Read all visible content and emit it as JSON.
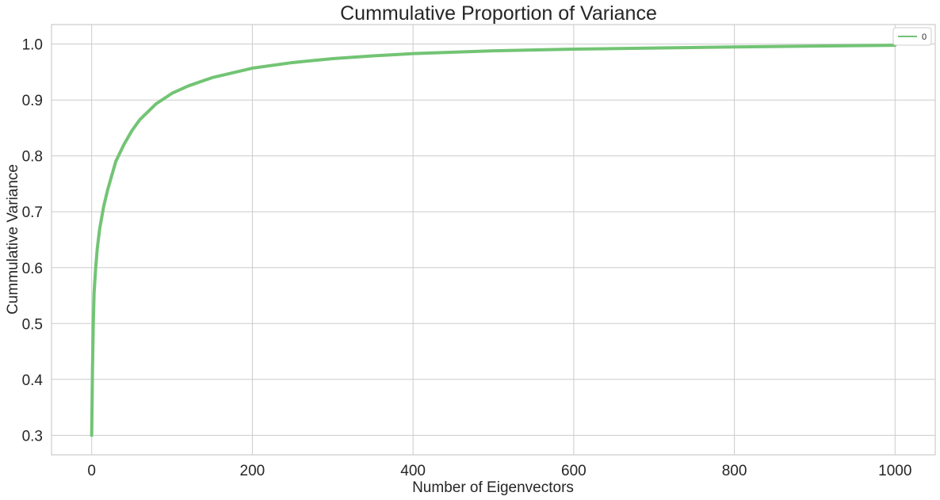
{
  "chart_data": {
    "type": "line",
    "title": "Cummulative Proportion of Variance",
    "xlabel": "Number of Eigenvectors",
    "ylabel": "Cummulative Variance",
    "xlim": [
      -50,
      1050
    ],
    "ylim": [
      0.265,
      1.035
    ],
    "x_ticks": [
      0,
      200,
      400,
      600,
      800,
      1000
    ],
    "x_tick_labels": [
      "0",
      "200",
      "400",
      "600",
      "800",
      "1000"
    ],
    "y_ticks": [
      0.3,
      0.4,
      0.5,
      0.6,
      0.7,
      0.8,
      0.9,
      1.0
    ],
    "y_tick_labels": [
      "0.3",
      "0.4",
      "0.5",
      "0.6",
      "0.7",
      "0.8",
      "0.9",
      "1.0"
    ],
    "grid": true,
    "legend": "top-right",
    "series": [
      {
        "name": "0",
        "color": "#72c474",
        "x": [
          0,
          1,
          2,
          3,
          5,
          7,
          10,
          15,
          20,
          30,
          40,
          50,
          60,
          80,
          100,
          120,
          150,
          200,
          250,
          300,
          350,
          400,
          500,
          600,
          700,
          800,
          900,
          1000
        ],
        "y": [
          0.3,
          0.42,
          0.5,
          0.555,
          0.6,
          0.635,
          0.67,
          0.71,
          0.74,
          0.79,
          0.82,
          0.845,
          0.865,
          0.893,
          0.912,
          0.925,
          0.94,
          0.957,
          0.967,
          0.974,
          0.979,
          0.983,
          0.988,
          0.991,
          0.993,
          0.995,
          0.9965,
          0.998
        ]
      }
    ]
  }
}
